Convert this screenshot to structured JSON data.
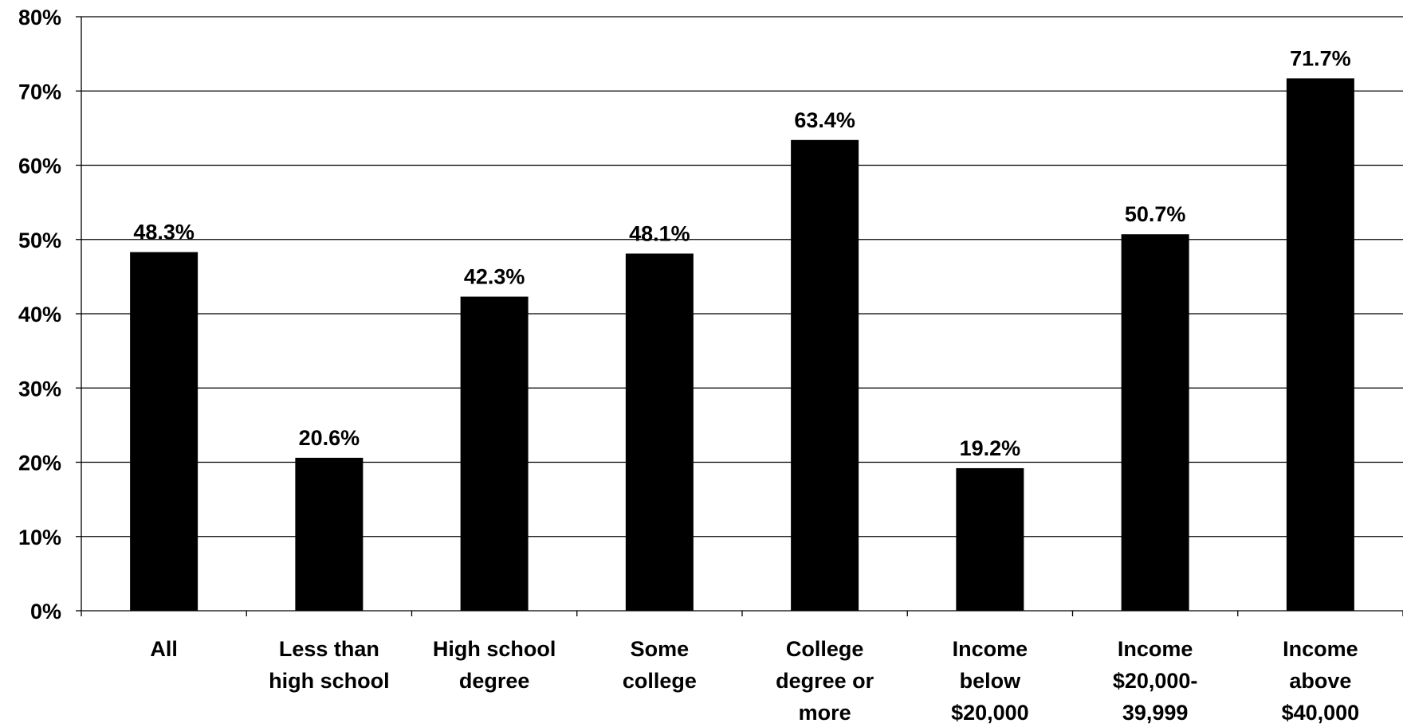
{
  "chart_data": {
    "type": "bar",
    "categories": [
      [
        "All"
      ],
      [
        "Less than",
        "high school"
      ],
      [
        "High school",
        "degree"
      ],
      [
        "Some",
        "college"
      ],
      [
        "College",
        "degree or",
        "more"
      ],
      [
        "Income",
        "below",
        "$20,000"
      ],
      [
        "Income",
        "$20,000-",
        "39,999"
      ],
      [
        "Income",
        "above",
        "$40,000"
      ]
    ],
    "values": [
      48.3,
      20.6,
      42.3,
      48.1,
      63.4,
      19.2,
      50.7,
      71.7
    ],
    "data_labels": [
      "48.3%",
      "20.6%",
      "42.3%",
      "48.1%",
      "63.4%",
      "19.2%",
      "50.7%",
      "71.7%"
    ],
    "ylim": [
      0,
      80
    ],
    "yticks": [
      0,
      10,
      20,
      30,
      40,
      50,
      60,
      70,
      80
    ],
    "ytick_labels": [
      "0%",
      "10%",
      "20%",
      "30%",
      "40%",
      "50%",
      "60%",
      "70%",
      "80%"
    ],
    "title": "",
    "xlabel": "",
    "ylabel": "",
    "grid": true,
    "bar_color": "#000000",
    "grid_color": "#000000"
  }
}
